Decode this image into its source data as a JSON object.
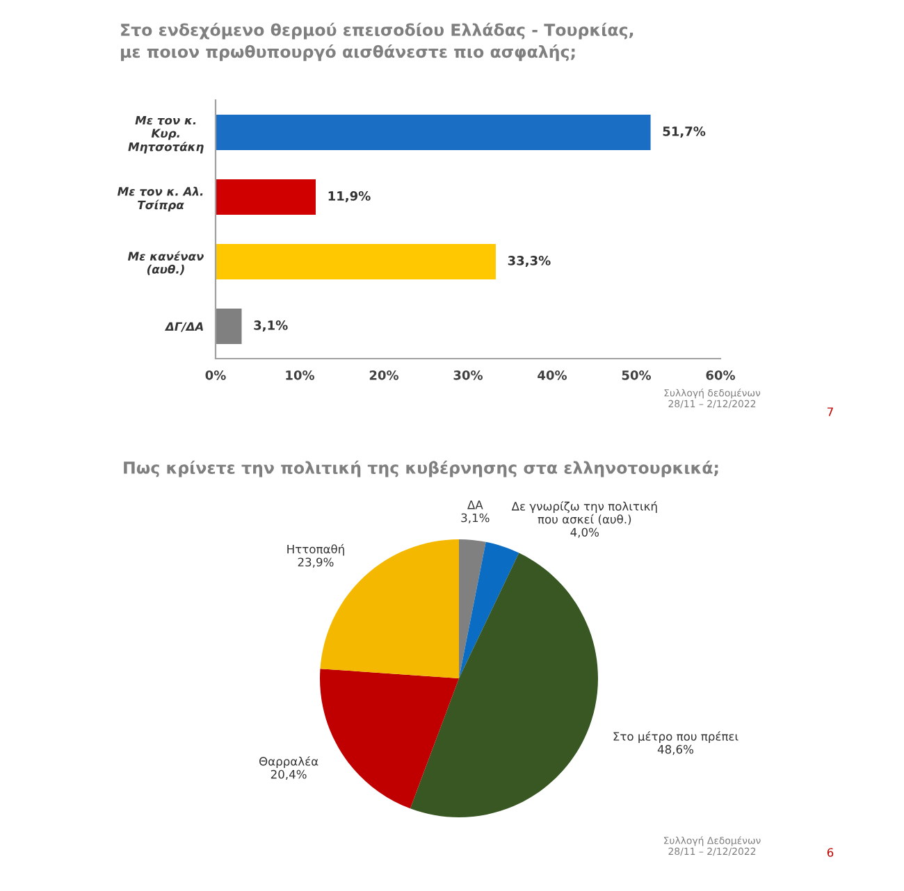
{
  "chart_data": [
    {
      "type": "bar",
      "orientation": "horizontal",
      "title": "Στο ενδεχόμενο θερμού επεισοδίου Ελλάδας - Τουρκίας,\nμε ποιον πρωθυπουργό αισθάνεστε πιο ασφαλής;",
      "categories": [
        "Με τον κ.\nΚυρ.\nΜητσοτάκη",
        "Με τον κ. Αλ.\nΤσίπρα",
        "Με κανέναν\n(αυθ.)",
        "ΔΓ/ΔΑ"
      ],
      "values": [
        51.7,
        11.9,
        33.3,
        3.1
      ],
      "colors": [
        "#1a6ec4",
        "#d00000",
        "#ffc800",
        "#808080"
      ],
      "value_labels": [
        "51,7%",
        "11,9%",
        "33,3%",
        "3,1%"
      ],
      "xlim": [
        0,
        60
      ],
      "xticks": [
        {
          "value": 0,
          "label": "0%"
        },
        {
          "value": 10,
          "label": "10%"
        },
        {
          "value": 20,
          "label": "20%"
        },
        {
          "value": 30,
          "label": "30%"
        },
        {
          "value": 40,
          "label": "40%"
        },
        {
          "value": 50,
          "label": "50%"
        },
        {
          "value": 60,
          "label": "60%"
        }
      ],
      "annotations": [
        "Συλλογή δεδομένων\n28/11 – 2/12/2022",
        "7"
      ]
    },
    {
      "type": "pie",
      "title": "Πως κρίνετε την πολιτική της κυβέρνησης στα ελληνοτουρκικά;",
      "categories": [
        "ΔΑ",
        "Δε γνωρίζω την πολιτική\nπου ασκεί (αυθ.)",
        "Στο μέτρο που πρέπει",
        "Θαρραλέα",
        "Ηττοπαθή"
      ],
      "values": [
        3.1,
        4.0,
        48.6,
        20.4,
        23.9
      ],
      "colors": [
        "#808080",
        "#0a6cc2",
        "#385723",
        "#c00000",
        "#f5b800"
      ],
      "value_labels": [
        "3,1%",
        "4,0%",
        "48,6%",
        "20,4%",
        "23,9%"
      ],
      "annotations": [
        "Συλλογή Δεδομένων\n28/11 – 2/12/2022",
        "6"
      ]
    }
  ]
}
